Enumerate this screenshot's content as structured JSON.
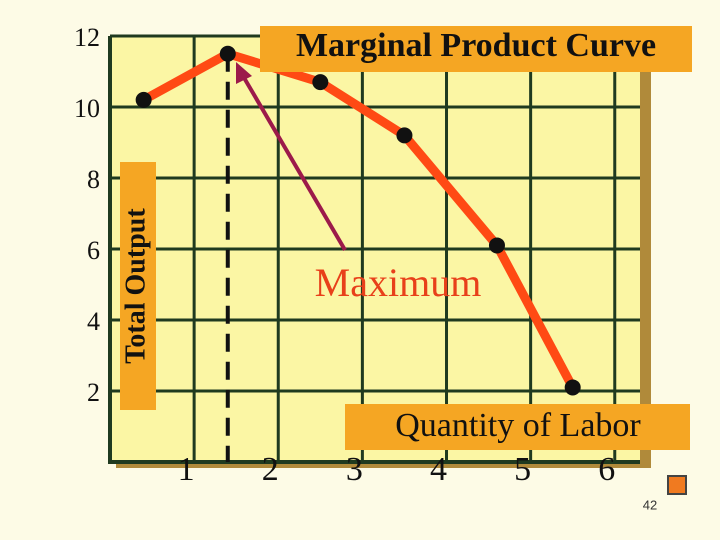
{
  "chart_data": {
    "type": "line",
    "title": "Marginal Product Curve",
    "y_label": "Total Output",
    "x_label": "Quantity of Labor",
    "annotation": "Maximum",
    "x": [
      0.4,
      1.4,
      2.5,
      3.5,
      4.6,
      5.5
    ],
    "values": [
      10.2,
      11.5,
      10.7,
      9.2,
      6.1,
      2.1
    ],
    "color": "#ff4a14",
    "xlim": [
      0,
      6.3
    ],
    "xticks": [
      1,
      2,
      3,
      4,
      5,
      6
    ],
    "ylim": [
      0,
      12
    ],
    "yticks": [
      2,
      4,
      6,
      8,
      10,
      12
    ],
    "grid": true
  },
  "slide_number": "42"
}
